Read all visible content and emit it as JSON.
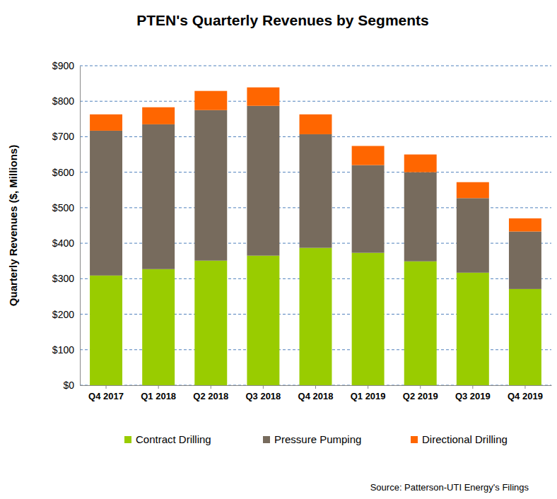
{
  "chart_data": {
    "type": "bar",
    "stacked": true,
    "grid": true,
    "legend": "bottom",
    "title": "PTEN's Quarterly Revenues by Segments",
    "y_label": "Quarterly Revenues ($, Millions)",
    "source": "Source: Patterson-UTI Energy's Filings",
    "categories": [
      "Q4 2017",
      "Q1 2018",
      "Q2 2018",
      "Q3 2018",
      "Q4 2018",
      "Q1 2019",
      "Q2 2019",
      "Q3 2019",
      "Q4 2019"
    ],
    "series": [
      {
        "name": "Contract Drilling",
        "color": "#99cc00",
        "values": [
          309,
          327,
          351,
          365,
          387,
          373,
          349,
          317,
          271
        ]
      },
      {
        "name": "Pressure Pumping",
        "color": "#776b5d",
        "values": [
          408,
          408,
          424,
          422,
          320,
          247,
          251,
          210,
          162
        ]
      },
      {
        "name": "Directional Drilling",
        "color": "#ff6600",
        "values": [
          46,
          48,
          54,
          52,
          56,
          54,
          50,
          45,
          37
        ]
      }
    ],
    "ylim": [
      0,
      900
    ],
    "yticks": [
      {
        "value": 0,
        "label": "$0"
      },
      {
        "value": 100,
        "label": "$100"
      },
      {
        "value": 200,
        "label": "$200"
      },
      {
        "value": 300,
        "label": "$300"
      },
      {
        "value": 400,
        "label": "$400"
      },
      {
        "value": 500,
        "label": "$500"
      },
      {
        "value": 600,
        "label": "$600"
      },
      {
        "value": 700,
        "label": "$700"
      },
      {
        "value": 800,
        "label": "$800"
      },
      {
        "value": 900,
        "label": "$900"
      }
    ]
  }
}
